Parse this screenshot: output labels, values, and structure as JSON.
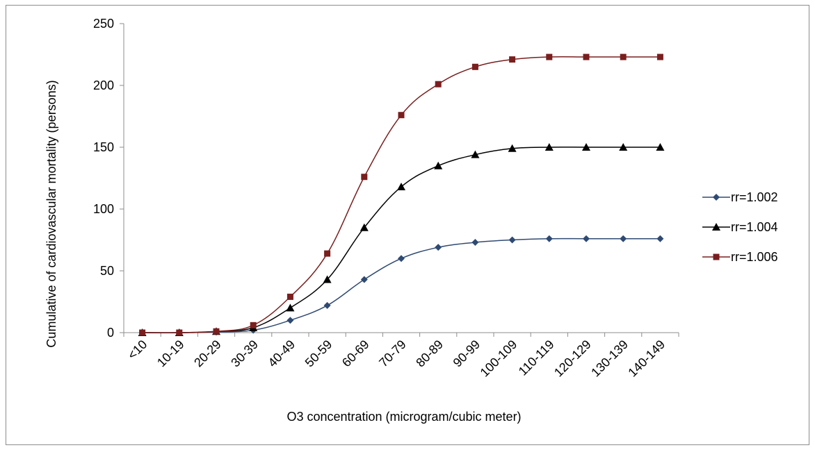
{
  "chart_data": {
    "type": "line",
    "title": "",
    "xlabel": "O3 concentration (microgram/cubic meter)",
    "ylabel": "Cumulative of cardiovascular mortality (persons)",
    "ylim": [
      0,
      250
    ],
    "yticks": [
      0,
      50,
      100,
      150,
      200,
      250
    ],
    "grid": false,
    "legend_position": "right",
    "categories": [
      "<10",
      "10-19",
      "20-29",
      "30-39",
      "40-49",
      "50-59",
      "60-69",
      "70-79",
      "80-89",
      "90-99",
      "100-109",
      "110-119",
      "120-129",
      "130-139",
      "140-149"
    ],
    "series": [
      {
        "name": "rr=1.002",
        "color": "#2f4a72",
        "marker": "diamond",
        "values": [
          0,
          0,
          0.5,
          2,
          10,
          22,
          43,
          60,
          69,
          73,
          75,
          76,
          76,
          76,
          76
        ]
      },
      {
        "name": "rr=1.004",
        "color": "#000000",
        "marker": "triangle",
        "values": [
          0,
          0,
          1,
          4,
          20,
          43,
          85,
          118,
          135,
          144,
          149,
          150,
          150,
          150,
          150
        ]
      },
      {
        "name": "rr=1.006",
        "color": "#7a1e1e",
        "marker": "square",
        "values": [
          0,
          0,
          1,
          6,
          29,
          64,
          126,
          176,
          201,
          215,
          221,
          223,
          223,
          223,
          223
        ]
      }
    ]
  }
}
